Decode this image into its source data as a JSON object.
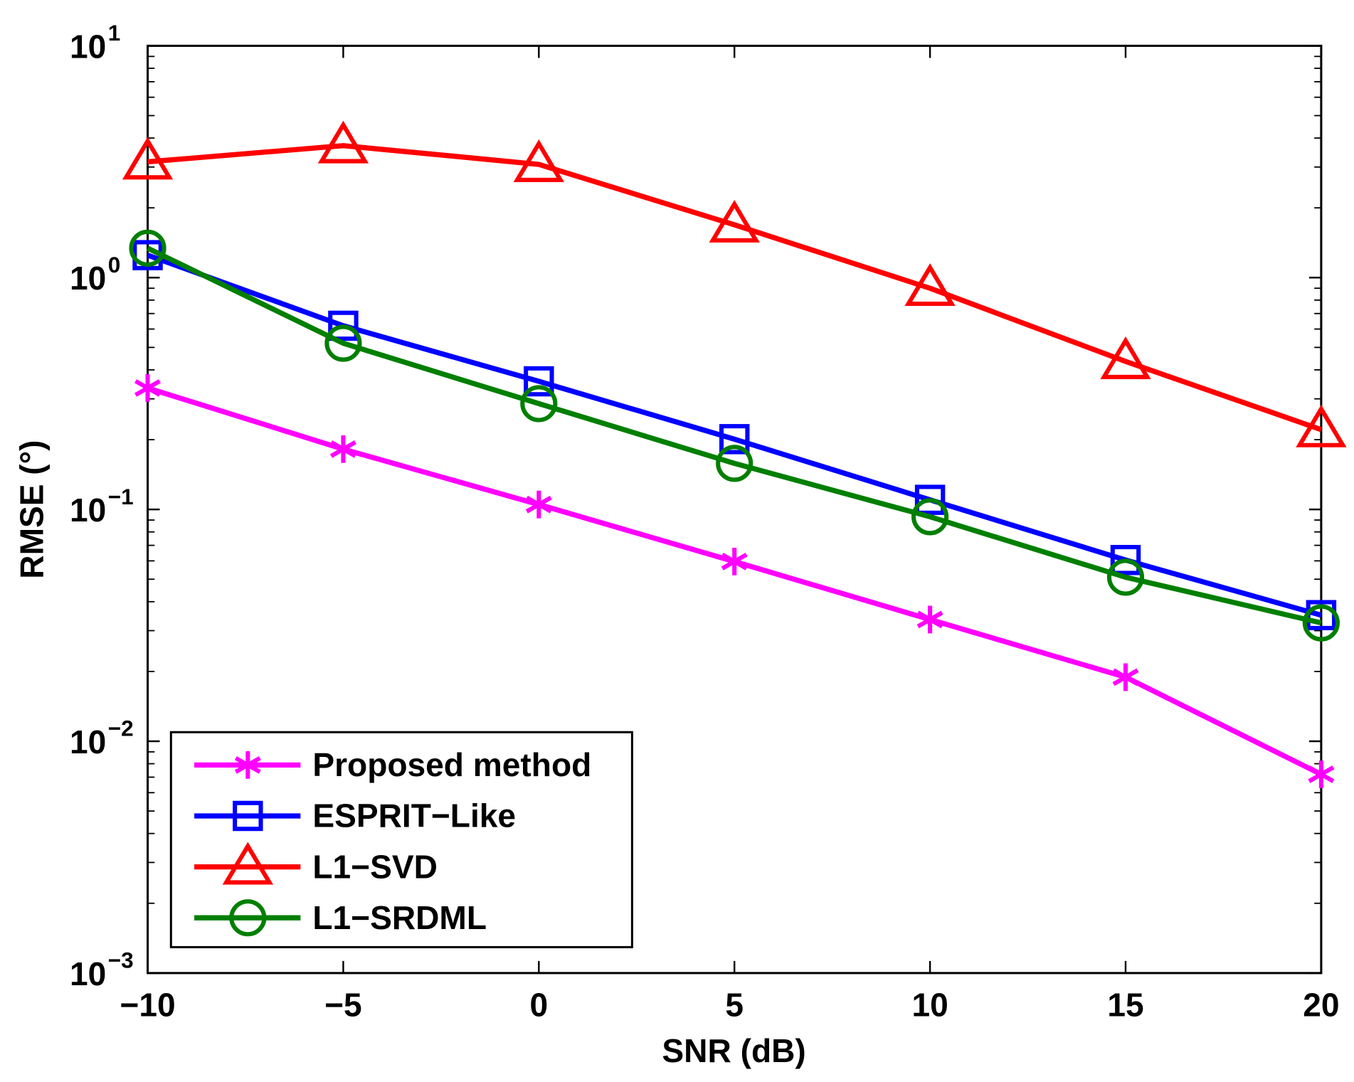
{
  "chart_data": {
    "type": "line",
    "title": "",
    "xlabel": "SNR (dB)",
    "ylabel": "RMSE (°)",
    "xlim": [
      -10,
      20
    ],
    "ylim": [
      0.001,
      10
    ],
    "yscale": "log",
    "grid": false,
    "legend_position": "bottom-left",
    "x": [
      -10,
      -5,
      0,
      5,
      10,
      15,
      20
    ],
    "xticks": [
      -10,
      -5,
      0,
      5,
      10,
      15,
      20
    ],
    "xtick_labels": [
      "−10",
      "−5",
      "0",
      "5",
      "10",
      "15",
      "20"
    ],
    "ytick_labels": [
      {
        "base": "10",
        "exp": "-3"
      },
      {
        "base": "10",
        "exp": "-2"
      },
      {
        "base": "10",
        "exp": "-1"
      },
      {
        "base": "10",
        "exp": "0"
      },
      {
        "base": "10",
        "exp": "1"
      }
    ],
    "series": [
      {
        "name": "Proposed method",
        "color": "#ff00ff",
        "marker": "asterisk",
        "values": [
          0.334,
          0.182,
          0.105,
          0.0596,
          0.0335,
          0.0189,
          0.0072
        ]
      },
      {
        "name": "ESPRIT−Like",
        "color": "#0000ff",
        "marker": "square",
        "values": [
          1.25,
          0.62,
          0.357,
          0.201,
          0.11,
          0.0605,
          0.035
        ]
      },
      {
        "name": "L1−SVD",
        "color": "#ff0000",
        "marker": "triangle",
        "values": [
          3.16,
          3.71,
          3.08,
          1.69,
          0.9,
          0.435,
          0.221
        ]
      },
      {
        "name": "L1−SRDML",
        "color": "#007f00",
        "marker": "circle",
        "values": [
          1.34,
          0.521,
          0.286,
          0.158,
          0.093,
          0.051,
          0.0324
        ]
      }
    ]
  }
}
